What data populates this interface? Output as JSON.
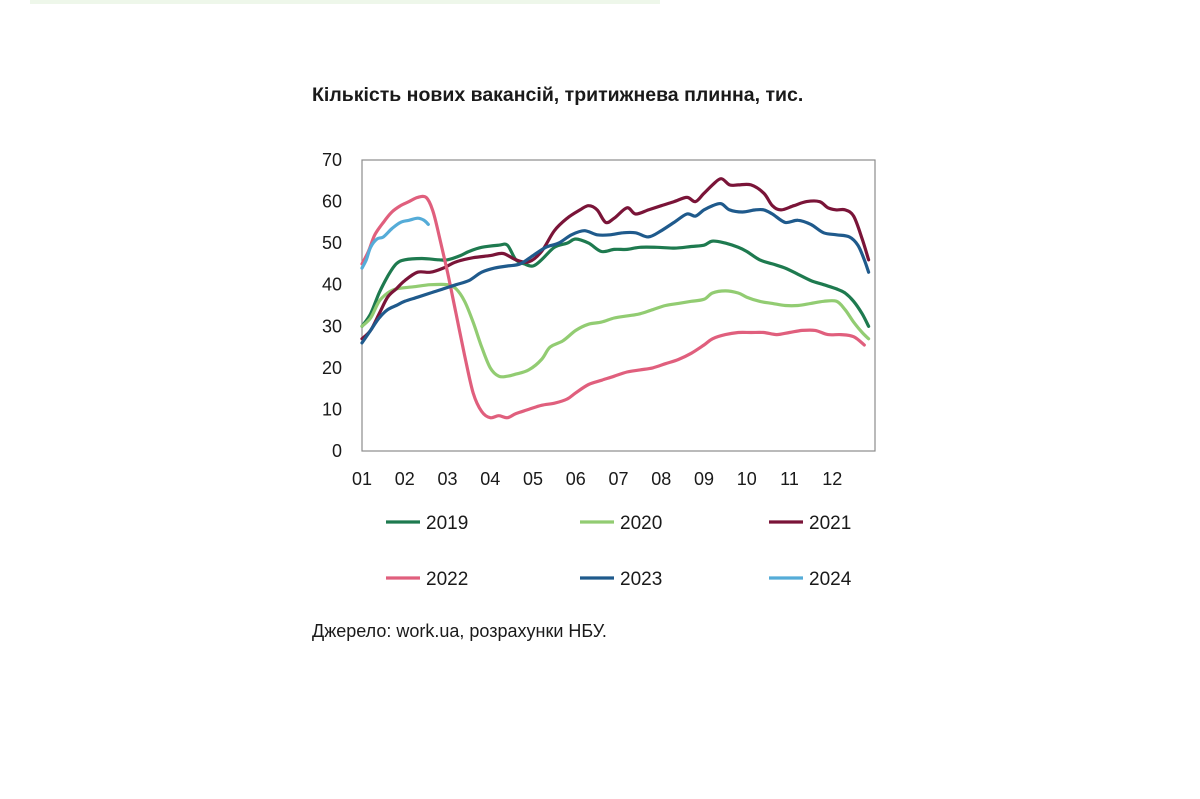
{
  "chart_data": {
    "type": "line",
    "title": "Кількість нових вакансій, тритижнева плинна, тис.",
    "xlabel": "",
    "ylabel": "",
    "x_ticks": [
      "01",
      "02",
      "03",
      "04",
      "05",
      "06",
      "07",
      "08",
      "09",
      "10",
      "11",
      "12"
    ],
    "y_ticks": [
      0,
      10,
      20,
      30,
      40,
      50,
      60,
      70
    ],
    "xlim": [
      1,
      13
    ],
    "ylim": [
      0,
      70
    ],
    "grid": false,
    "legend_position": "bottom",
    "series": [
      {
        "name": "2019",
        "color": "#1e7a4f",
        "points": [
          [
            1.0,
            30
          ],
          [
            1.2,
            33
          ],
          [
            1.4,
            38
          ],
          [
            1.6,
            42
          ],
          [
            1.8,
            45
          ],
          [
            2.0,
            46
          ],
          [
            2.4,
            46.3
          ],
          [
            2.8,
            46
          ],
          [
            3.0,
            46
          ],
          [
            3.3,
            47
          ],
          [
            3.5,
            48
          ],
          [
            3.8,
            49
          ],
          [
            4.2,
            49.5
          ],
          [
            4.4,
            49.5
          ],
          [
            4.6,
            46
          ],
          [
            4.8,
            45
          ],
          [
            5.0,
            44.5
          ],
          [
            5.2,
            46
          ],
          [
            5.5,
            49
          ],
          [
            5.8,
            50
          ],
          [
            6.0,
            51
          ],
          [
            6.3,
            50
          ],
          [
            6.6,
            48
          ],
          [
            6.9,
            48.5
          ],
          [
            7.2,
            48.5
          ],
          [
            7.5,
            49
          ],
          [
            7.9,
            49
          ],
          [
            8.3,
            48.8
          ],
          [
            8.7,
            49.2
          ],
          [
            9.0,
            49.5
          ],
          [
            9.2,
            50.5
          ],
          [
            9.5,
            50
          ],
          [
            9.8,
            49
          ],
          [
            10.0,
            48
          ],
          [
            10.3,
            46
          ],
          [
            10.6,
            45
          ],
          [
            10.9,
            44
          ],
          [
            11.2,
            42.5
          ],
          [
            11.5,
            41
          ],
          [
            11.8,
            40
          ],
          [
            12.1,
            39
          ],
          [
            12.3,
            38
          ],
          [
            12.5,
            36
          ],
          [
            12.7,
            33
          ],
          [
            12.85,
            30
          ]
        ]
      },
      {
        "name": "2020",
        "color": "#92cc72",
        "points": [
          [
            1.0,
            30
          ],
          [
            1.2,
            32
          ],
          [
            1.4,
            36
          ],
          [
            1.6,
            38
          ],
          [
            1.8,
            39
          ],
          [
            2.2,
            39.5
          ],
          [
            2.6,
            40
          ],
          [
            3.0,
            40
          ],
          [
            3.2,
            39
          ],
          [
            3.4,
            36
          ],
          [
            3.6,
            31
          ],
          [
            3.8,
            25
          ],
          [
            4.0,
            20
          ],
          [
            4.2,
            18
          ],
          [
            4.4,
            18
          ],
          [
            4.6,
            18.5
          ],
          [
            4.9,
            19.5
          ],
          [
            5.2,
            22
          ],
          [
            5.4,
            25
          ],
          [
            5.7,
            26.5
          ],
          [
            6.0,
            29
          ],
          [
            6.3,
            30.5
          ],
          [
            6.6,
            31
          ],
          [
            6.9,
            32
          ],
          [
            7.2,
            32.5
          ],
          [
            7.5,
            33
          ],
          [
            7.8,
            34
          ],
          [
            8.1,
            35
          ],
          [
            8.4,
            35.5
          ],
          [
            8.7,
            36
          ],
          [
            9.0,
            36.5
          ],
          [
            9.2,
            38
          ],
          [
            9.5,
            38.5
          ],
          [
            9.8,
            38
          ],
          [
            10.0,
            37
          ],
          [
            10.3,
            36
          ],
          [
            10.6,
            35.5
          ],
          [
            10.9,
            35
          ],
          [
            11.2,
            35
          ],
          [
            11.5,
            35.5
          ],
          [
            11.8,
            36
          ],
          [
            12.1,
            36
          ],
          [
            12.3,
            34
          ],
          [
            12.5,
            31
          ],
          [
            12.7,
            28.5
          ],
          [
            12.85,
            27
          ]
        ]
      },
      {
        "name": "2021",
        "color": "#7a1438",
        "points": [
          [
            1.0,
            27
          ],
          [
            1.2,
            29
          ],
          [
            1.4,
            33
          ],
          [
            1.6,
            37
          ],
          [
            1.8,
            39
          ],
          [
            2.0,
            41
          ],
          [
            2.3,
            43
          ],
          [
            2.6,
            43
          ],
          [
            2.9,
            44
          ],
          [
            3.2,
            45.5
          ],
          [
            3.6,
            46.5
          ],
          [
            4.0,
            47
          ],
          [
            4.3,
            47.5
          ],
          [
            4.6,
            46
          ],
          [
            4.9,
            45.5
          ],
          [
            5.2,
            48
          ],
          [
            5.5,
            53
          ],
          [
            5.8,
            56
          ],
          [
            6.1,
            58
          ],
          [
            6.3,
            59
          ],
          [
            6.5,
            58
          ],
          [
            6.7,
            55
          ],
          [
            6.9,
            56
          ],
          [
            7.2,
            58.5
          ],
          [
            7.4,
            57
          ],
          [
            7.7,
            58
          ],
          [
            8.0,
            59
          ],
          [
            8.3,
            60
          ],
          [
            8.6,
            61
          ],
          [
            8.8,
            60
          ],
          [
            9.0,
            62
          ],
          [
            9.2,
            64
          ],
          [
            9.4,
            65.5
          ],
          [
            9.6,
            64
          ],
          [
            9.8,
            64
          ],
          [
            10.1,
            64
          ],
          [
            10.4,
            62
          ],
          [
            10.6,
            59
          ],
          [
            10.8,
            58
          ],
          [
            11.1,
            59
          ],
          [
            11.4,
            60
          ],
          [
            11.7,
            60
          ],
          [
            11.9,
            58.5
          ],
          [
            12.1,
            58
          ],
          [
            12.3,
            58
          ],
          [
            12.5,
            56.5
          ],
          [
            12.7,
            51
          ],
          [
            12.85,
            46
          ]
        ]
      },
      {
        "name": "2022",
        "color": "#e05f7d",
        "points": [
          [
            1.0,
            45
          ],
          [
            1.15,
            48
          ],
          [
            1.3,
            52
          ],
          [
            1.5,
            55
          ],
          [
            1.7,
            57.5
          ],
          [
            1.9,
            59
          ],
          [
            2.1,
            60
          ],
          [
            2.3,
            61
          ],
          [
            2.5,
            61
          ],
          [
            2.65,
            58
          ],
          [
            2.8,
            52
          ],
          [
            3.0,
            43
          ],
          [
            3.2,
            33
          ],
          [
            3.4,
            23
          ],
          [
            3.6,
            14
          ],
          [
            3.8,
            9.5
          ],
          [
            4.0,
            8
          ],
          [
            4.2,
            8.5
          ],
          [
            4.4,
            8
          ],
          [
            4.6,
            9
          ],
          [
            4.9,
            10
          ],
          [
            5.2,
            11
          ],
          [
            5.5,
            11.5
          ],
          [
            5.8,
            12.5
          ],
          [
            6.0,
            14
          ],
          [
            6.3,
            16
          ],
          [
            6.6,
            17
          ],
          [
            6.9,
            18
          ],
          [
            7.2,
            19
          ],
          [
            7.5,
            19.5
          ],
          [
            7.8,
            20
          ],
          [
            8.1,
            21
          ],
          [
            8.4,
            22
          ],
          [
            8.7,
            23.5
          ],
          [
            9.0,
            25.5
          ],
          [
            9.2,
            27
          ],
          [
            9.5,
            28
          ],
          [
            9.8,
            28.5
          ],
          [
            10.1,
            28.5
          ],
          [
            10.4,
            28.5
          ],
          [
            10.7,
            28
          ],
          [
            11.0,
            28.5
          ],
          [
            11.3,
            29
          ],
          [
            11.6,
            29
          ],
          [
            11.9,
            28
          ],
          [
            12.2,
            28
          ],
          [
            12.5,
            27.5
          ],
          [
            12.75,
            25.5
          ]
        ]
      },
      {
        "name": "2023",
        "color": "#1f5a8c",
        "points": [
          [
            1.0,
            26
          ],
          [
            1.2,
            29
          ],
          [
            1.4,
            32
          ],
          [
            1.6,
            34
          ],
          [
            1.8,
            35
          ],
          [
            2.0,
            36
          ],
          [
            2.3,
            37
          ],
          [
            2.6,
            38
          ],
          [
            2.9,
            39
          ],
          [
            3.2,
            40
          ],
          [
            3.5,
            41
          ],
          [
            3.8,
            43
          ],
          [
            4.1,
            44
          ],
          [
            4.4,
            44.5
          ],
          [
            4.7,
            45
          ],
          [
            5.0,
            47
          ],
          [
            5.3,
            49
          ],
          [
            5.6,
            50
          ],
          [
            5.9,
            52
          ],
          [
            6.2,
            53
          ],
          [
            6.5,
            52
          ],
          [
            6.8,
            52
          ],
          [
            7.1,
            52.5
          ],
          [
            7.4,
            52.5
          ],
          [
            7.7,
            51.5
          ],
          [
            8.0,
            53
          ],
          [
            8.3,
            55
          ],
          [
            8.6,
            57
          ],
          [
            8.8,
            56.5
          ],
          [
            9.0,
            58
          ],
          [
            9.2,
            59
          ],
          [
            9.4,
            59.5
          ],
          [
            9.6,
            58
          ],
          [
            9.9,
            57.5
          ],
          [
            10.2,
            58
          ],
          [
            10.4,
            58
          ],
          [
            10.6,
            57
          ],
          [
            10.9,
            55
          ],
          [
            11.2,
            55.5
          ],
          [
            11.5,
            54.5
          ],
          [
            11.8,
            52.5
          ],
          [
            12.1,
            52
          ],
          [
            12.4,
            51.5
          ],
          [
            12.6,
            49.5
          ],
          [
            12.75,
            46
          ],
          [
            12.85,
            43
          ]
        ]
      },
      {
        "name": "2024",
        "color": "#55acd8",
        "points": [
          [
            1.0,
            44
          ],
          [
            1.1,
            46
          ],
          [
            1.2,
            49
          ],
          [
            1.35,
            51
          ],
          [
            1.5,
            51.5
          ],
          [
            1.7,
            53.5
          ],
          [
            1.9,
            55
          ],
          [
            2.1,
            55.5
          ],
          [
            2.3,
            56
          ],
          [
            2.45,
            55.5
          ],
          [
            2.55,
            54.5
          ]
        ]
      }
    ]
  },
  "source_text": "Джерело: work.ua, розрахунки НБУ."
}
